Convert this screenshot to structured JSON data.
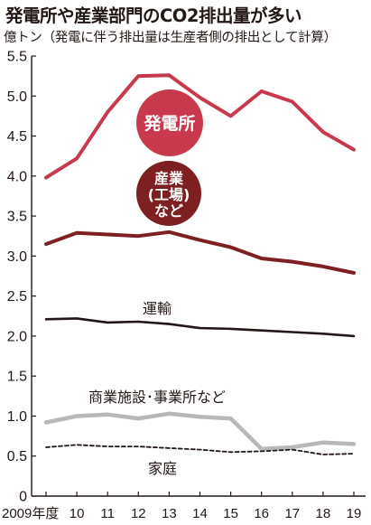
{
  "title": "発電所や産業部門のCO2排出量が多い",
  "subtitle": "億トン（発電に伴う排出量は生産者側の排出として計算）",
  "colors": {
    "power": "#c8394e",
    "industry": "#7e1f22",
    "transport": "#231815",
    "commercial": "#b8b8b8",
    "household": "#231815"
  },
  "chart_data": {
    "type": "line",
    "x": [
      "2009年度",
      "10",
      "11",
      "12",
      "13",
      "14",
      "15",
      "16",
      "17",
      "18",
      "19"
    ],
    "ylim": [
      0,
      5.5
    ],
    "yticks": [
      "0",
      "0.5",
      "1.0",
      "1.5",
      "2.0",
      "2.5",
      "3.0",
      "3.5",
      "4.0",
      "4.5",
      "5.0",
      "5.5"
    ],
    "grid": false,
    "series": [
      {
        "name": "発電所",
        "values": [
          3.98,
          4.22,
          4.8,
          5.25,
          5.26,
          4.98,
          4.75,
          5.06,
          4.93,
          4.55,
          4.33
        ]
      },
      {
        "name": "産業(工場)など",
        "values": [
          3.15,
          3.29,
          3.27,
          3.25,
          3.3,
          3.2,
          3.11,
          2.97,
          2.93,
          2.87,
          2.79
        ]
      },
      {
        "name": "運輸",
        "values": [
          2.21,
          2.22,
          2.17,
          2.18,
          2.15,
          2.1,
          2.09,
          2.07,
          2.05,
          2.03,
          2.0
        ]
      },
      {
        "name": "商業施設･事業所など",
        "values": [
          0.92,
          1.0,
          1.02,
          0.97,
          1.03,
          0.99,
          0.97,
          0.59,
          0.61,
          0.67,
          0.65
        ]
      },
      {
        "name": "家庭",
        "values": [
          0.61,
          0.64,
          0.62,
          0.62,
          0.6,
          0.58,
          0.55,
          0.56,
          0.58,
          0.52,
          0.53
        ]
      }
    ],
    "labels": {
      "power": "発電所",
      "industry_line1": "産業",
      "industry_line2": "(工場)",
      "industry_line3": "など",
      "transport": "運輸",
      "commercial": "商業施設･事業所など",
      "household": "家庭"
    }
  }
}
